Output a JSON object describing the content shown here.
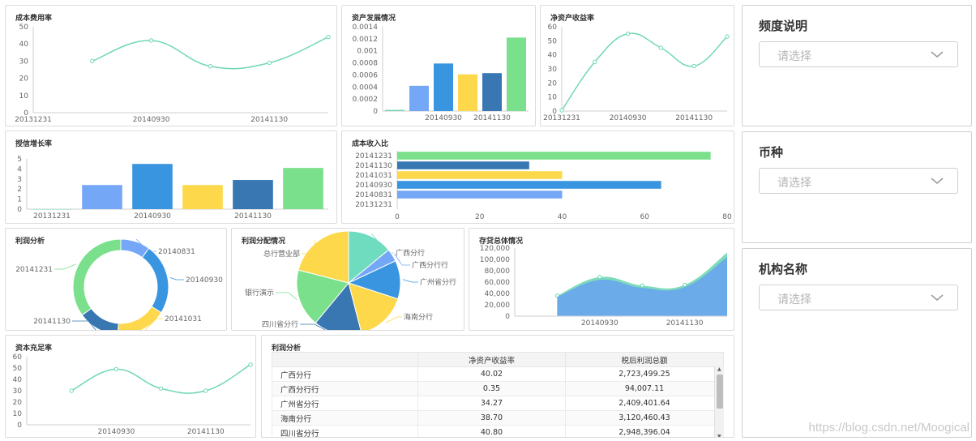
{
  "panels": {
    "cost_rate": {
      "title": "成本费用率"
    },
    "asset": {
      "title": "资产发展情况"
    },
    "roe": {
      "title": "净资产收益率"
    },
    "credit": {
      "title": "授信增长率"
    },
    "income_ratio": {
      "title": "成本收入比"
    },
    "profit_analysis": {
      "title": "利润分析"
    },
    "profit_dist": {
      "title": "利润分配情况"
    },
    "deposit": {
      "title": "存贷总体情况"
    },
    "capital": {
      "title": "资本充足率"
    },
    "profit_table": {
      "title": "利润分析"
    }
  },
  "filters": [
    {
      "title": "频度说明",
      "placeholder": "请选择"
    },
    {
      "title": "币种",
      "placeholder": "请选择"
    },
    {
      "title": "机构名称",
      "placeholder": "请选择"
    }
  ],
  "table": {
    "headers": [
      "",
      "净资产收益率",
      "税后利润总额"
    ],
    "rows": [
      [
        "广西分行",
        "40.02",
        "2,723,499.25"
      ],
      [
        "广西分行行",
        "0.35",
        "94,007.11"
      ],
      [
        "广州省分行",
        "34.27",
        "2,409,401.64"
      ],
      [
        "海南分行",
        "38.70",
        "3,120,460.43"
      ],
      [
        "四川省分行",
        "40.80",
        "2,948,396.04"
      ]
    ]
  },
  "watermark": "https://blog.csdn.net/Moogical",
  "colors": {
    "line": "#6fd8b2",
    "green": "#7ae08b",
    "lightblue": "#75a7f7",
    "blue": "#3a95e0",
    "yellow": "#fdd84b",
    "darkblue": "#3877b2",
    "teal": "#6fdcc0",
    "areaBlue": "#6aa8ec"
  },
  "chart_data": [
    {
      "id": "cost_rate",
      "type": "line",
      "x": [
        "20131231",
        "20140831",
        "20140930",
        "20141031",
        "20141130",
        "20141231"
      ],
      "xtick_labels": [
        "20131231",
        "",
        "20140930",
        "",
        "20141130",
        ""
      ],
      "values": [
        null,
        30,
        42,
        27,
        29,
        44
      ],
      "ylim": [
        0,
        50
      ],
      "yticks": [
        0,
        10,
        20,
        30,
        40,
        50
      ]
    },
    {
      "id": "asset",
      "type": "bar",
      "categories": [
        "20131231",
        "20140831",
        "20140930",
        "20141031",
        "20141130",
        "20141231"
      ],
      "xtick_labels": [
        "",
        "",
        "20140930",
        "",
        "20141130",
        ""
      ],
      "values": [
        2e-05,
        0.00042,
        0.00079,
        0.00061,
        0.00063,
        0.00122
      ],
      "bar_colors": [
        "#6fd8b2",
        "#75a7f7",
        "#3a95e0",
        "#fdd84b",
        "#3877b2",
        "#7ae08b"
      ],
      "ylim": [
        0,
        0.0014
      ],
      "yticks": [
        "0",
        "0.0002",
        "0.0004",
        "0.0006",
        "0.0008",
        "0.001",
        "0.0012",
        "0.0014"
      ]
    },
    {
      "id": "roe",
      "type": "line",
      "x": [
        "20131231",
        "20140831",
        "20140930",
        "20141031",
        "20141130",
        "20141231"
      ],
      "xtick_labels": [
        "20131231",
        "",
        "20140930",
        "",
        "20141130",
        ""
      ],
      "values": [
        0.5,
        35,
        55,
        45,
        32,
        53
      ],
      "ylim": [
        0,
        60
      ],
      "yticks": [
        0,
        10,
        20,
        30,
        40,
        50,
        60
      ]
    },
    {
      "id": "credit",
      "type": "bar",
      "categories": [
        "20131231",
        "20140831",
        "20140930",
        "20141031",
        "20141130",
        "20141231"
      ],
      "xtick_labels": [
        "20131231",
        "",
        "20140930",
        "",
        "20141130",
        ""
      ],
      "values": [
        0,
        2.4,
        4.5,
        2.4,
        2.9,
        4.1
      ],
      "bar_colors": [
        "#6fd8b2",
        "#75a7f7",
        "#3a95e0",
        "#fdd84b",
        "#3877b2",
        "#7ae08b"
      ],
      "ylim": [
        0,
        5
      ],
      "yticks": [
        0,
        1,
        2,
        3,
        4,
        5
      ]
    },
    {
      "id": "income_ratio",
      "type": "bar",
      "orientation": "horizontal",
      "categories": [
        "20141231",
        "20141130",
        "20141031",
        "20140930",
        "20140831",
        "20131231"
      ],
      "values": [
        76,
        32,
        40,
        64,
        40,
        0
      ],
      "bar_colors": [
        "#7ae08b",
        "#3877b2",
        "#fdd84b",
        "#3a95e0",
        "#75a7f7",
        "#6fd8b2"
      ],
      "xlim": [
        0,
        80
      ],
      "xticks": [
        0,
        20,
        40,
        60,
        80
      ]
    },
    {
      "id": "profit_analysis",
      "type": "pie",
      "donut": true,
      "labels": [
        "20140831",
        "20140930",
        "20141031",
        "20141130",
        "20141231"
      ],
      "values": [
        10,
        24,
        17,
        14,
        35
      ],
      "colors": [
        "#75a7f7",
        "#3a95e0",
        "#fdd84b",
        "#3877b2",
        "#7ae08b"
      ]
    },
    {
      "id": "profit_dist",
      "type": "pie",
      "labels": [
        "广西分行",
        "广西分行行",
        "广州省分行",
        "海南分行",
        "四川省分行",
        "银行演示",
        "总行营业部"
      ],
      "values": [
        14,
        4,
        12,
        16,
        15,
        18,
        21
      ],
      "colors": [
        "#6fdcc0",
        "#75a7f7",
        "#3a95e0",
        "#fdd84b",
        "#3877b2",
        "#7ae08b",
        "#fdd84b"
      ]
    },
    {
      "id": "deposit",
      "type": "area",
      "x": [
        "20131231",
        "20140831",
        "20140930",
        "20141031",
        "20141130",
        "20141231"
      ],
      "xtick_labels": [
        "",
        "",
        "20140930",
        "",
        "20141130",
        ""
      ],
      "series": [
        {
          "values": [
            null,
            36000,
            69000,
            54000,
            55000,
            112000
          ],
          "color": "#6fd8b2"
        },
        {
          "values": [
            null,
            34000,
            64000,
            50000,
            51000,
            104000
          ],
          "color": "#6aa8ec"
        }
      ],
      "ylim": [
        0,
        120000
      ],
      "yticks": [
        "0",
        "20,000",
        "40,000",
        "60,000",
        "80,000",
        "100,000",
        "120,000"
      ]
    },
    {
      "id": "capital",
      "type": "line",
      "x": [
        "20131231",
        "20140831",
        "20140930",
        "20141031",
        "20141130",
        "20141231"
      ],
      "xtick_labels": [
        "",
        "",
        "20140930",
        "",
        "20141130",
        ""
      ],
      "values": [
        null,
        30,
        49,
        32,
        30,
        53
      ],
      "ylim": [
        0,
        60
      ],
      "yticks": [
        0,
        10,
        20,
        30,
        40,
        50,
        60
      ]
    }
  ]
}
